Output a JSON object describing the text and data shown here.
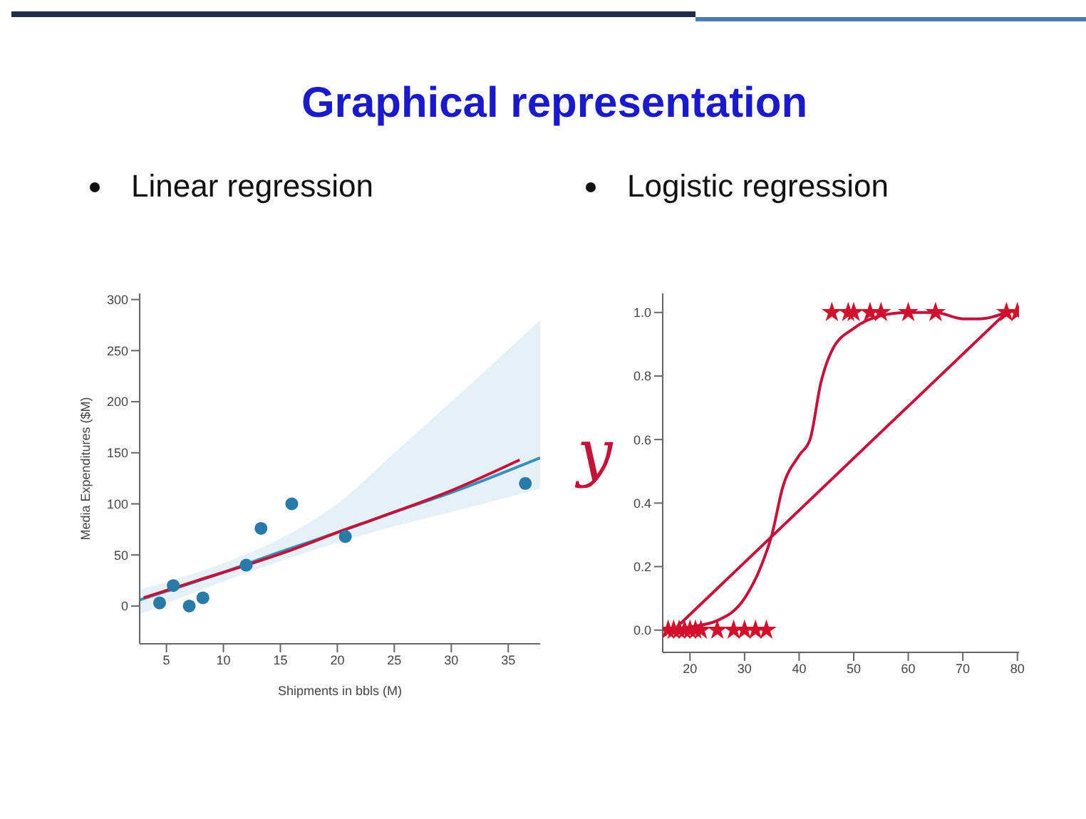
{
  "chart_data": [
    {
      "type": "scatter",
      "title": "Linear regression",
      "annotations": [
        "Graphical representation"
      ],
      "xlabel": "Shipments in  bbls  (M)",
      "ylabel": "Media Expenditures ($M)",
      "xlim": [
        2.65,
        37.8
      ],
      "ylim": [
        -37,
        306
      ],
      "xticks": [
        5,
        10,
        15,
        20,
        25,
        30,
        35
      ],
      "yticks": [
        0,
        50,
        100,
        150,
        200,
        250,
        300
      ],
      "series": [
        {
          "type": "line",
          "color": "#3b8fb8",
          "x": [
            2.65,
            10,
            15,
            20,
            25,
            30,
            37.8
          ],
          "values": [
            6,
            33,
            53,
            72,
            92,
            111,
            145
          ],
          "lower": [
            -8,
            24,
            44,
            62,
            78,
            92,
            115
          ],
          "upper": [
            16,
            42,
            66,
            100,
            150,
            200,
            280
          ]
        },
        {
          "type": "line",
          "color": "#c0143c",
          "x": [
            3,
            8,
            12,
            16,
            20,
            25,
            30,
            36
          ],
          "values": [
            8,
            26,
            40,
            55,
            72,
            92,
            113,
            143
          ]
        },
        {
          "color": "#2a7aa8",
          "marker": "circle",
          "x": [
            4.4,
            5.6,
            7,
            8.2,
            12,
            13.3,
            16,
            20.7,
            36.5
          ],
          "values": [
            3,
            20,
            0,
            8,
            40,
            76,
            100,
            68,
            120
          ]
        }
      ]
    },
    {
      "type": "scatter",
      "title": "Logistic regression",
      "annotations": [
        "y"
      ],
      "xlim": [
        15,
        80.3
      ],
      "ylim": [
        -0.07,
        1.06
      ],
      "xticks": [
        20,
        30,
        40,
        50,
        60,
        70,
        80
      ],
      "yticks": [
        {
          "value": 0,
          "label": "0.0"
        },
        {
          "value": 0.2,
          "label": "0.2"
        },
        {
          "value": 0.4,
          "label": "0.4"
        },
        {
          "value": 0.6,
          "label": "0.6"
        },
        {
          "value": 0.8,
          "label": "0.8"
        },
        {
          "value": 1,
          "label": "1.0"
        }
      ],
      "series": [
        {
          "type": "line",
          "color": "#c0143c",
          "x": [
            15,
            20,
            25,
            30,
            33,
            35,
            37,
            40,
            42,
            44,
            46,
            50,
            55,
            60,
            65,
            70,
            73,
            78
          ],
          "values": [
            0,
            0.01,
            0.03,
            0.1,
            0.2,
            0.3,
            0.45,
            0.55,
            0.6,
            0.78,
            0.88,
            0.95,
            0.99,
            1,
            1,
            0.98,
            0.98,
            1
          ]
        },
        {
          "type": "line",
          "color": "#c0143c",
          "x": [
            17,
            78
          ],
          "values": [
            0,
            1
          ]
        },
        {
          "color": "#d0102c",
          "marker": "star",
          "x": [
            16,
            17,
            18,
            19,
            20,
            21,
            22,
            25,
            28,
            30,
            32,
            34,
            46,
            49,
            50,
            53,
            55,
            60,
            65,
            78,
            80
          ],
          "values": [
            0,
            0,
            0,
            0,
            0,
            0,
            0,
            0,
            0,
            0,
            0,
            0,
            1,
            1,
            1,
            1,
            1,
            1,
            1,
            1,
            1
          ]
        }
      ]
    }
  ]
}
